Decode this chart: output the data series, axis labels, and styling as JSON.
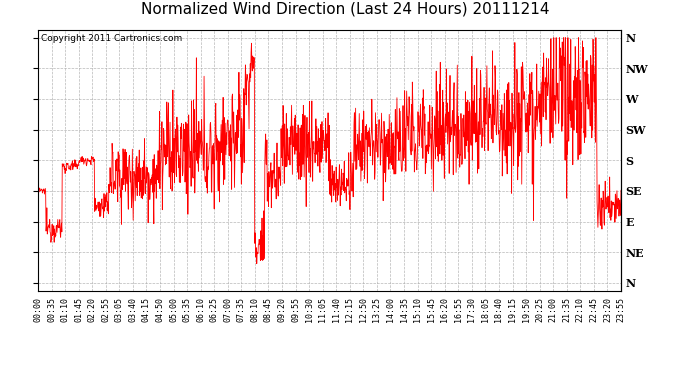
{
  "title": "Normalized Wind Direction (Last 24 Hours) 20111214",
  "copyright_text": "Copyright 2011 Cartronics.com",
  "line_color": "#ff0000",
  "background_color": "#ffffff",
  "grid_color": "#b0b0b0",
  "border_color": "#000000",
  "y_labels": [
    "N",
    "NW",
    "W",
    "SW",
    "S",
    "SE",
    "E",
    "NE",
    "N"
  ],
  "y_ticks": [
    8,
    7,
    6,
    5,
    4,
    3,
    2,
    1,
    0
  ],
  "x_tick_labels": [
    "00:00",
    "00:35",
    "01:10",
    "01:45",
    "02:20",
    "02:55",
    "03:05",
    "03:40",
    "04:15",
    "04:50",
    "05:00",
    "05:35",
    "06:10",
    "06:25",
    "07:00",
    "07:35",
    "08:10",
    "08:45",
    "09:20",
    "09:55",
    "10:30",
    "11:05",
    "11:40",
    "12:15",
    "12:50",
    "13:25",
    "14:00",
    "14:35",
    "15:10",
    "15:45",
    "16:20",
    "16:55",
    "17:30",
    "18:05",
    "18:40",
    "19:15",
    "19:50",
    "20:25",
    "21:00",
    "21:35",
    "22:10",
    "22:45",
    "23:20",
    "23:55"
  ],
  "ylim": [
    -0.25,
    8.25
  ],
  "title_fontsize": 11,
  "label_fontsize": 8,
  "tick_fontsize": 6,
  "copyright_fontsize": 6.5,
  "figsize": [
    6.9,
    3.75
  ],
  "dpi": 100
}
